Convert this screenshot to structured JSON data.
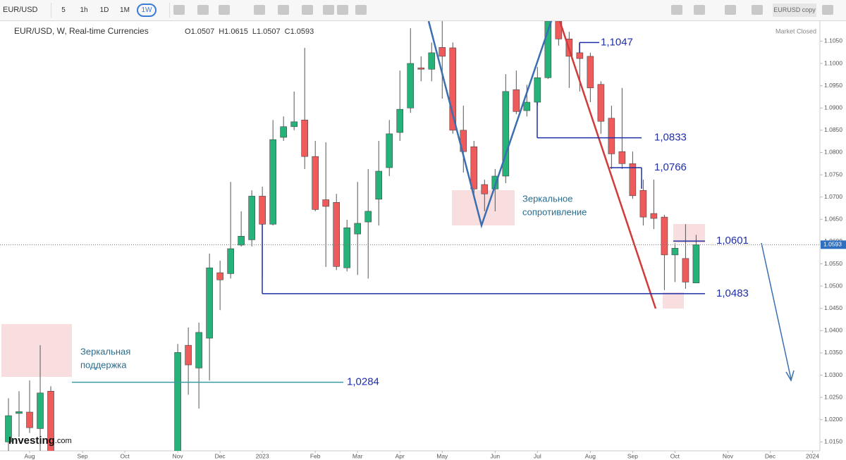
{
  "toolbar": {
    "symbol": "EUR/USD",
    "intervals": [
      "5",
      "1h",
      "1D",
      "1M",
      "1W"
    ],
    "active_interval": 4,
    "layout_name": "EURUSD copy"
  },
  "legend": {
    "title": "EUR/USD, W, Real-time Currencies",
    "ohlc_labels": [
      "O",
      "H",
      "L",
      "C"
    ],
    "status": "Market Closed"
  },
  "logo": {
    "name": "Investing",
    "suffix": ".com"
  },
  "chart_data": {
    "type": "candlestick",
    "up_color": "#26b37a",
    "down_color": "#ef5b5b",
    "xlim": [
      -0.8,
      76.7
    ],
    "ylim": [
      1.013,
      1.1095
    ],
    "grid": false,
    "xticks": [
      {
        "value": 2,
        "label": "Aug"
      },
      {
        "value": 7,
        "label": "Sep"
      },
      {
        "value": 11,
        "label": "Oct"
      },
      {
        "value": 16,
        "label": "Nov"
      },
      {
        "value": 20,
        "label": "Dec"
      },
      {
        "value": 24,
        "label": "2023"
      },
      {
        "value": 29,
        "label": "Feb"
      },
      {
        "value": 33,
        "label": "Mar"
      },
      {
        "value": 37,
        "label": "Apr"
      },
      {
        "value": 41,
        "label": "May"
      },
      {
        "value": 46,
        "label": "Jun"
      },
      {
        "value": 50,
        "label": "Jul"
      },
      {
        "value": 55,
        "label": "Aug"
      },
      {
        "value": 59,
        "label": "Sep"
      },
      {
        "value": 63,
        "label": "Oct"
      },
      {
        "value": 68,
        "label": "Nov"
      },
      {
        "value": 72,
        "label": "Dec"
      },
      {
        "value": 76,
        "label": "2024"
      }
    ],
    "yticks": [
      {
        "value": 1.015,
        "label": "1.0150"
      },
      {
        "value": 1.02,
        "label": "1.0200"
      },
      {
        "value": 1.025,
        "label": "1.0250"
      },
      {
        "value": 1.03,
        "label": "1.0300"
      },
      {
        "value": 1.035,
        "label": "1.0350"
      },
      {
        "value": 1.04,
        "label": "1.0400"
      },
      {
        "value": 1.045,
        "label": "1.0450"
      },
      {
        "value": 1.05,
        "label": "1.0500"
      },
      {
        "value": 1.055,
        "label": "1.0550"
      },
      {
        "value": 1.06,
        "label": "1.0600"
      },
      {
        "value": 1.065,
        "label": "1.0650"
      },
      {
        "value": 1.07,
        "label": "1.0700"
      },
      {
        "value": 1.075,
        "label": "1.0750"
      },
      {
        "value": 1.08,
        "label": "1.0800"
      },
      {
        "value": 1.085,
        "label": "1.0850"
      },
      {
        "value": 1.09,
        "label": "1.0900"
      },
      {
        "value": 1.095,
        "label": "1.0950"
      },
      {
        "value": 1.1,
        "label": "1.1000"
      },
      {
        "value": 1.105,
        "label": "1.1050"
      }
    ],
    "last_price": {
      "value": 1.0593,
      "label": "1.0593"
    },
    "candles": [
      {
        "x": 0,
        "o": 1.015,
        "h": 1.0248,
        "l": 1.012,
        "c": 1.0209
      },
      {
        "x": 1,
        "o": 1.0214,
        "h": 1.0264,
        "l": 1.0161,
        "c": 1.0218
      },
      {
        "x": 2,
        "o": 1.0217,
        "h": 1.0288,
        "l": 1.017,
        "c": 1.0182
      },
      {
        "x": 3,
        "o": 1.018,
        "h": 1.0367,
        "l": 1.013,
        "c": 1.026
      },
      {
        "x": 4,
        "o": 1.0264,
        "h": 1.0275,
        "l": 1.011,
        "c": 1.0122
      },
      {
        "x": 16,
        "o": 1.012,
        "h": 1.037,
        "l": 1.01,
        "c": 1.0351
      },
      {
        "x": 17,
        "o": 1.0367,
        "h": 1.0407,
        "l": 1.0256,
        "c": 1.0323
      },
      {
        "x": 18,
        "o": 1.0316,
        "h": 1.0418,
        "l": 1.0225,
        "c": 1.0396
      },
      {
        "x": 19,
        "o": 1.0383,
        "h": 1.0573,
        "l": 1.0288,
        "c": 1.0541
      },
      {
        "x": 20,
        "o": 1.053,
        "h": 1.0557,
        "l": 1.0446,
        "c": 1.0514
      },
      {
        "x": 21,
        "o": 1.0528,
        "h": 1.0734,
        "l": 1.0517,
        "c": 1.0584
      },
      {
        "x": 22,
        "o": 1.0592,
        "h": 1.0668,
        "l": 1.0589,
        "c": 1.0612
      },
      {
        "x": 23,
        "o": 1.0604,
        "h": 1.0715,
        "l": 1.0589,
        "c": 1.0702
      },
      {
        "x": 24,
        "o": 1.0702,
        "h": 1.0723,
        "l": 1.0517,
        "c": 1.0639
      },
      {
        "x": 25,
        "o": 1.0639,
        "h": 1.0873,
        "l": 1.0636,
        "c": 1.0829
      },
      {
        "x": 26,
        "o": 1.0834,
        "h": 1.0881,
        "l": 1.0826,
        "c": 1.0858
      },
      {
        "x": 27,
        "o": 1.0858,
        "h": 1.0937,
        "l": 1.085,
        "c": 1.0869
      },
      {
        "x": 28,
        "o": 1.0873,
        "h": 1.1035,
        "l": 1.0763,
        "c": 1.0791
      },
      {
        "x": 29,
        "o": 1.0791,
        "h": 1.0826,
        "l": 1.0668,
        "c": 1.0672
      },
      {
        "x": 30,
        "o": 1.0694,
        "h": 1.0823,
        "l": 1.0543,
        "c": 1.0679
      },
      {
        "x": 31,
        "o": 1.0688,
        "h": 1.0707,
        "l": 1.0536,
        "c": 1.0544
      },
      {
        "x": 32,
        "o": 1.0541,
        "h": 1.0649,
        "l": 1.0533,
        "c": 1.0631
      },
      {
        "x": 33,
        "o": 1.0617,
        "h": 1.0734,
        "l": 1.0525,
        "c": 1.0641
      },
      {
        "x": 34,
        "o": 1.0644,
        "h": 1.0763,
        "l": 1.0517,
        "c": 1.0668
      },
      {
        "x": 35,
        "o": 1.0695,
        "h": 1.0826,
        "l": 1.0636,
        "c": 1.0758
      },
      {
        "x": 36,
        "o": 1.0766,
        "h": 1.0873,
        "l": 1.0747,
        "c": 1.0842
      },
      {
        "x": 37,
        "o": 1.0845,
        "h": 1.0984,
        "l": 1.0826,
        "c": 1.0897
      },
      {
        "x": 38,
        "o": 1.09,
        "h": 1.1079,
        "l": 1.0889,
        "c": 1.1
      },
      {
        "x": 39,
        "o": 1.099,
        "h": 1.1016,
        "l": 1.096,
        "c": 1.0987
      },
      {
        "x": 40,
        "o": 1.0987,
        "h": 1.1047,
        "l": 1.096,
        "c": 1.1024
      },
      {
        "x": 41,
        "o": 1.1036,
        "h": 1.1095,
        "l": 1.0921,
        "c": 1.1016
      },
      {
        "x": 42,
        "o": 1.1035,
        "h": 1.1047,
        "l": 1.0842,
        "c": 1.085
      },
      {
        "x": 43,
        "o": 1.085,
        "h": 1.0905,
        "l": 1.0755,
        "c": 1.0802
      },
      {
        "x": 44,
        "o": 1.0813,
        "h": 1.0826,
        "l": 1.0707,
        "c": 1.0718
      },
      {
        "x": 45,
        "o": 1.0728,
        "h": 1.0739,
        "l": 1.0668,
        "c": 1.0707
      },
      {
        "x": 46,
        "o": 1.0718,
        "h": 1.0763,
        "l": 1.0668,
        "c": 1.0747
      },
      {
        "x": 47,
        "o": 1.0747,
        "h": 1.0976,
        "l": 1.0731,
        "c": 1.0937
      },
      {
        "x": 48,
        "o": 1.0941,
        "h": 1.0984,
        "l": 1.0886,
        "c": 1.0892
      },
      {
        "x": 49,
        "o": 1.0894,
        "h": 1.0952,
        "l": 1.0881,
        "c": 1.0913
      },
      {
        "x": 50,
        "o": 1.0913,
        "h": 1.0992,
        "l": 1.0905,
        "c": 1.0968
      },
      {
        "x": 51,
        "o": 1.0968,
        "h": 1.1111,
        "l": 1.0965,
        "c": 1.1095
      },
      {
        "x": 52,
        "o": 1.1095,
        "h": 1.112,
        "l": 1.104,
        "c": 1.1055
      },
      {
        "x": 53,
        "o": 1.1055,
        "h": 1.1071,
        "l": 1.0945,
        "c": 1.1016
      },
      {
        "x": 54,
        "o": 1.1024,
        "h": 1.1047,
        "l": 1.0937,
        "c": 1.1011
      },
      {
        "x": 55,
        "o": 1.1016,
        "h": 1.1024,
        "l": 1.0913,
        "c": 1.0945
      },
      {
        "x": 56,
        "o": 1.0953,
        "h": 1.096,
        "l": 1.0842,
        "c": 1.087
      },
      {
        "x": 57,
        "o": 1.0877,
        "h": 1.0905,
        "l": 1.0763,
        "c": 1.0797
      },
      {
        "x": 58,
        "o": 1.0802,
        "h": 1.0945,
        "l": 1.0763,
        "c": 1.0775
      },
      {
        "x": 59,
        "o": 1.0775,
        "h": 1.0802,
        "l": 1.0696,
        "c": 1.0703
      },
      {
        "x": 60,
        "o": 1.0715,
        "h": 1.0739,
        "l": 1.0636,
        "c": 1.0655
      },
      {
        "x": 61,
        "o": 1.0663,
        "h": 1.0739,
        "l": 1.0628,
        "c": 1.0652
      },
      {
        "x": 62,
        "o": 1.0655,
        "h": 1.066,
        "l": 1.0491,
        "c": 1.057
      },
      {
        "x": 63,
        "o": 1.057,
        "h": 1.0596,
        "l": 1.0509,
        "c": 1.0585
      },
      {
        "x": 64,
        "o": 1.0562,
        "h": 1.0639,
        "l": 1.0494,
        "c": 1.0509
      },
      {
        "x": 65,
        "o": 1.0507,
        "h": 1.0615,
        "l": 1.0507,
        "c": 1.0593
      }
    ],
    "levels": [
      {
        "value": 1.1047,
        "label": "1,1047"
      },
      {
        "value": 1.0833,
        "label": "1,0833"
      },
      {
        "value": 1.0766,
        "label": "1,0766"
      },
      {
        "value": 1.0601,
        "label": "1,0601"
      },
      {
        "value": 1.0483,
        "label": "1,0483"
      },
      {
        "value": 1.0284,
        "label": "1,0284"
      }
    ],
    "annotations": [
      {
        "lines": [
          "Зеркальная",
          "поддержка"
        ]
      },
      {
        "lines": [
          "Зеркальное",
          "сопротивление"
        ]
      }
    ]
  }
}
